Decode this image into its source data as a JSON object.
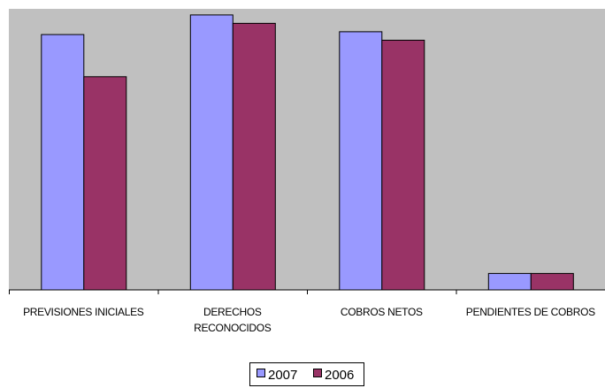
{
  "chart_data": {
    "type": "bar",
    "categories": [
      [
        "PREVISIONES INICIALES"
      ],
      [
        "DERECHOS",
        "RECONOCIDOS"
      ],
      [
        "COBROS NETOS"
      ],
      [
        "PENDIENTES DE COBROS"
      ]
    ],
    "series": [
      {
        "name": "2007",
        "color": "#9999FF",
        "values": [
          91,
          98,
          92,
          6
        ]
      },
      {
        "name": "2006",
        "color": "#993366",
        "values": [
          76,
          95,
          89,
          6
        ]
      }
    ],
    "ylim": [
      0,
      100
    ],
    "grid": false,
    "legend": "bottom",
    "plot_background": "#C0C0C0"
  }
}
